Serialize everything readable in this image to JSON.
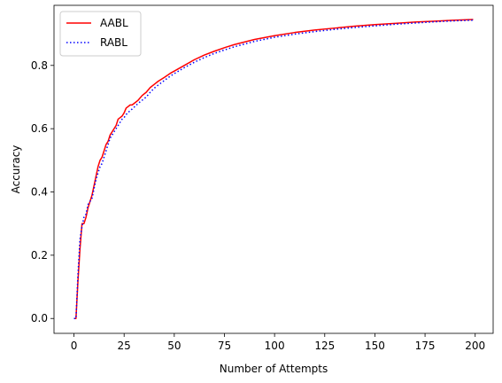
{
  "chart_data": {
    "type": "line",
    "title": "",
    "xlabel": "Number of Attempts",
    "ylabel": "Accuracy",
    "xlim": [
      -9.95,
      208.95
    ],
    "ylim": [
      -0.047,
      0.99
    ],
    "xticks": [
      0,
      25,
      50,
      75,
      100,
      125,
      150,
      175,
      200
    ],
    "yticks": [
      0.0,
      0.2,
      0.4,
      0.6,
      0.8
    ],
    "ytick_labels": [
      "0.0",
      "0.2",
      "0.4",
      "0.6",
      "0.8"
    ],
    "grid": false,
    "legend_position": "top-left",
    "series": [
      {
        "name": "AABL",
        "color": "#ff0000",
        "style": "solid",
        "x": [
          0,
          1,
          2,
          3,
          4,
          5,
          6,
          7,
          8,
          9,
          10,
          11,
          12,
          13,
          14,
          15,
          16,
          17,
          18,
          19,
          20,
          21,
          22,
          23,
          24,
          25,
          26,
          27,
          28,
          29,
          30,
          32,
          34,
          36,
          38,
          40,
          42,
          45,
          48,
          50,
          55,
          60,
          65,
          70,
          75,
          80,
          90,
          100,
          110,
          120,
          130,
          140,
          150,
          160,
          170,
          180,
          190,
          199
        ],
        "y": [
          0.0,
          0.0,
          0.12,
          0.22,
          0.3,
          0.3,
          0.32,
          0.35,
          0.37,
          0.39,
          0.42,
          0.45,
          0.48,
          0.5,
          0.51,
          0.53,
          0.55,
          0.56,
          0.58,
          0.59,
          0.6,
          0.61,
          0.63,
          0.635,
          0.64,
          0.65,
          0.665,
          0.67,
          0.675,
          0.675,
          0.68,
          0.69,
          0.705,
          0.715,
          0.73,
          0.74,
          0.75,
          0.762,
          0.775,
          0.782,
          0.8,
          0.818,
          0.833,
          0.845,
          0.856,
          0.866,
          0.882,
          0.894,
          0.904,
          0.912,
          0.918,
          0.924,
          0.929,
          0.933,
          0.937,
          0.94,
          0.943,
          0.945
        ]
      },
      {
        "name": "RABL",
        "color": "#0000ff",
        "style": "dotted",
        "x": [
          0,
          1,
          2,
          3,
          4,
          5,
          6,
          7,
          8,
          9,
          10,
          11,
          12,
          13,
          14,
          15,
          16,
          17,
          18,
          19,
          20,
          21,
          22,
          23,
          24,
          25,
          26,
          27,
          28,
          29,
          30,
          32,
          34,
          36,
          38,
          40,
          42,
          45,
          48,
          50,
          55,
          60,
          65,
          70,
          75,
          80,
          90,
          100,
          110,
          120,
          130,
          140,
          150,
          160,
          170,
          180,
          190,
          199
        ],
        "y": [
          0.0,
          0.0,
          0.14,
          0.25,
          0.29,
          0.32,
          0.33,
          0.36,
          0.37,
          0.38,
          0.41,
          0.44,
          0.46,
          0.48,
          0.49,
          0.51,
          0.53,
          0.55,
          0.57,
          0.58,
          0.59,
          0.6,
          0.61,
          0.62,
          0.63,
          0.635,
          0.645,
          0.65,
          0.658,
          0.662,
          0.668,
          0.68,
          0.69,
          0.7,
          0.715,
          0.728,
          0.738,
          0.752,
          0.766,
          0.774,
          0.793,
          0.81,
          0.825,
          0.838,
          0.849,
          0.859,
          0.876,
          0.889,
          0.899,
          0.907,
          0.914,
          0.92,
          0.925,
          0.93,
          0.934,
          0.938,
          0.941,
          0.943
        ]
      }
    ]
  }
}
